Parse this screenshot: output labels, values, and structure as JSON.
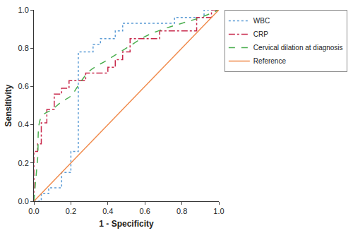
{
  "chart_data": {
    "type": "line",
    "x_label": "1 - Specificity",
    "y_label": "Sensitivity",
    "xlim": [
      0,
      1
    ],
    "ylim": [
      0,
      1
    ],
    "xticks": [
      {
        "value": 0,
        "label": "0.0"
      },
      0.2,
      0.4,
      0.6,
      0.8,
      {
        "value": 1,
        "label": "1.0"
      }
    ],
    "yticks": [
      {
        "value": 0,
        "label": "0.0"
      },
      0.2,
      0.4,
      0.6,
      0.8,
      {
        "value": 1,
        "label": "1.0"
      }
    ],
    "grid": false,
    "legend": "upper right",
    "series": [
      {
        "name": "WBC",
        "color": "#5b9bd5",
        "line_style": "dotted",
        "x": [
          0,
          0.04,
          0.04,
          0.08,
          0.08,
          0.15,
          0.15,
          0.2,
          0.2,
          0.24,
          0.24,
          0.32,
          0.32,
          0.36,
          0.36,
          0.44,
          0.44,
          0.48,
          0.48,
          0.76,
          0.76,
          0.92,
          0.92,
          1
        ],
        "values": [
          0,
          0,
          0.04,
          0.04,
          0.07,
          0.07,
          0.15,
          0.15,
          0.26,
          0.26,
          0.78,
          0.78,
          0.82,
          0.82,
          0.85,
          0.85,
          0.89,
          0.89,
          0.93,
          0.93,
          0.96,
          0.96,
          1,
          1
        ]
      },
      {
        "name": "CRP",
        "color": "#c8284b",
        "line_style": "dashdot",
        "x": [
          0,
          0,
          0.02,
          0.02,
          0.04,
          0.04,
          0.07,
          0.07,
          0.11,
          0.11,
          0.15,
          0.15,
          0.19,
          0.19,
          0.28,
          0.28,
          0.4,
          0.4,
          0.44,
          0.44,
          0.48,
          0.48,
          0.52,
          0.52,
          0.68,
          0.68,
          0.88,
          0.88,
          0.96,
          0.96,
          1
        ],
        "values": [
          0,
          0.26,
          0.26,
          0.3,
          0.3,
          0.41,
          0.41,
          0.48,
          0.48,
          0.56,
          0.56,
          0.59,
          0.59,
          0.63,
          0.63,
          0.67,
          0.67,
          0.7,
          0.7,
          0.74,
          0.74,
          0.78,
          0.78,
          0.85,
          0.85,
          0.89,
          0.89,
          0.96,
          0.96,
          1,
          1
        ]
      },
      {
        "name": "Cervical dilation at diagnosis",
        "color": "#4caf50",
        "line_style": "dashed",
        "marker": "smooth",
        "x": [
          0,
          0.02,
          0.04,
          0.1,
          0.15,
          0.2,
          0.25,
          0.3,
          0.4,
          0.5,
          0.6,
          0.7,
          0.8,
          0.9,
          1
        ],
        "values": [
          0,
          0.22,
          0.44,
          0.48,
          0.52,
          0.55,
          0.62,
          0.68,
          0.74,
          0.8,
          0.86,
          0.9,
          0.93,
          0.96,
          1
        ]
      },
      {
        "name": "Reference",
        "color": "#f08a4b",
        "line_style": "solid",
        "x": [
          0,
          1
        ],
        "values": [
          0,
          1
        ]
      }
    ]
  }
}
